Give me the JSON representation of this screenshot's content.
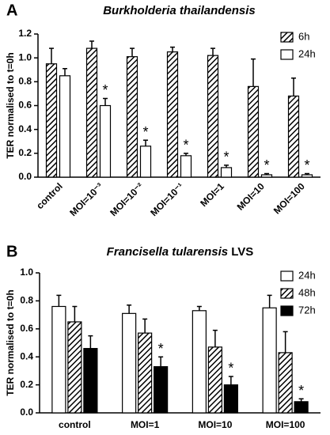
{
  "chart_data": [
    {
      "type": "bar",
      "panel": "A",
      "title": [
        "Burkholderia thailandensis"
      ],
      "y_label": "TER normalised to t=0h",
      "categories": [
        "control",
        "MOI=10⁻³",
        "MOI=10⁻²",
        "MOI=10⁻¹",
        "MOI=1",
        "MOI=10",
        "MOI=100"
      ],
      "ylim": [
        0,
        1.2
      ],
      "yticks": [
        {
          "value": 0,
          "label": "0.0"
        },
        0.2,
        0.4,
        0.6,
        0.8,
        {
          "value": 1,
          "label": "1.0"
        },
        1.2
      ],
      "legend": "upper right",
      "x_label_rotation": -45,
      "series": [
        {
          "name": "6h",
          "color": "#000000",
          "pattern": "hatch",
          "values": [
            0.95,
            1.08,
            1.01,
            1.05,
            1.02,
            0.76,
            0.68
          ],
          "errors": [
            0.13,
            0.06,
            0.07,
            0.04,
            0.06,
            0.23,
            0.15
          ],
          "significance": [
            null,
            null,
            null,
            null,
            null,
            null,
            null
          ]
        },
        {
          "name": "24h",
          "color": "#ffffff",
          "pattern": "solid",
          "values": [
            0.85,
            0.6,
            0.26,
            0.18,
            0.08,
            0.02,
            0.02
          ],
          "errors": [
            0.06,
            0.06,
            0.05,
            0.02,
            0.02,
            0.01,
            0.01
          ],
          "significance": [
            null,
            "*",
            "*",
            "*",
            "*",
            "*",
            "*"
          ]
        }
      ]
    },
    {
      "type": "bar",
      "panel": "B",
      "title": [
        "Francisella tularensis",
        "LVS"
      ],
      "y_label": "TER normalised to t=0h",
      "categories": [
        "control",
        "MOI=1",
        "MOI=10",
        "MOI=100"
      ],
      "ylim": [
        0,
        1
      ],
      "yticks": [
        {
          "value": 0,
          "label": "0.0"
        },
        0.2,
        0.4,
        0.6,
        0.8,
        {
          "value": 1,
          "label": "1.0"
        }
      ],
      "legend": "upper right",
      "x_label_rotation": 0,
      "series": [
        {
          "name": "24h",
          "color": "#ffffff",
          "pattern": "solid",
          "values": [
            0.76,
            0.71,
            0.73,
            0.75
          ],
          "errors": [
            0.08,
            0.06,
            0.03,
            0.09
          ],
          "significance": [
            null,
            null,
            null,
            null
          ]
        },
        {
          "name": "48h",
          "color": "#000000",
          "pattern": "hatch",
          "values": [
            0.65,
            0.57,
            0.47,
            0.43
          ],
          "errors": [
            0.11,
            0.1,
            0.12,
            0.15
          ],
          "significance": [
            null,
            null,
            null,
            null
          ]
        },
        {
          "name": "72h",
          "color": "#000000",
          "pattern": "solid",
          "values": [
            0.46,
            0.33,
            0.2,
            0.08
          ],
          "errors": [
            0.09,
            0.07,
            0.06,
            0.02
          ],
          "significance": [
            null,
            "*",
            "*",
            "*"
          ]
        }
      ]
    }
  ]
}
